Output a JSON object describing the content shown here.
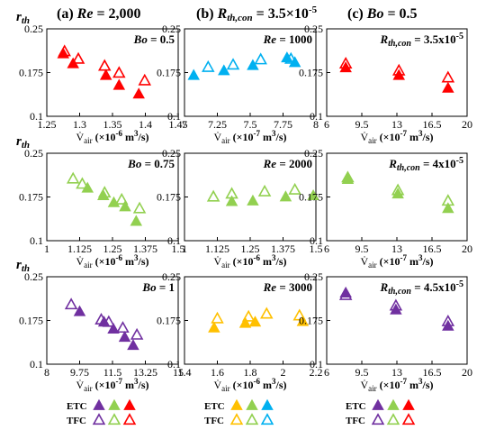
{
  "figure": {
    "col_titles": [
      "(a) Re = 2,000",
      "(b) Rth,con = 3.5×10-5",
      "(c) Bo = 0.5"
    ],
    "col_title_parts": [
      {
        "prefix": "(a) ",
        "italic": "Re",
        "suffix": " = 2,000",
        "sup": ""
      },
      {
        "prefix": "(b) ",
        "italic": "R",
        "sub": "th,con",
        "suffix": " = 3.5×10",
        "sup": "-5"
      },
      {
        "prefix": "(c) ",
        "italic": "Bo",
        "suffix": " = 0.5",
        "sup": ""
      }
    ],
    "row_ylabel": "rth",
    "legend": {
      "rows": [
        "ETC",
        "TFC"
      ],
      "colors": [
        "#7030a0",
        "#92d050",
        "#ff0000",
        "#ffc000",
        "#00b0f0"
      ],
      "panel_columns": [
        [
          "#7030a0",
          "#92d050",
          "#ff0000"
        ],
        [
          "#ffc000",
          "#92d050",
          "#00b0f0"
        ],
        [
          "#7030a0",
          "#92d050",
          "#ff0000"
        ]
      ]
    }
  },
  "chart_data": [
    {
      "type": "scatter",
      "panel": "row1-col1",
      "color": "#ff0000",
      "annotation": "Bo = 0.5",
      "xlabel": "V̇air (×10-6 m3/s)",
      "ylabel": "rth",
      "xlim": [
        1.25,
        1.45
      ],
      "ylim": [
        0.1,
        0.25
      ],
      "xticks": [
        "1.25",
        "1.3",
        "1.35",
        "1.4",
        "1.45"
      ],
      "yticks": [
        "0.1",
        "0.175",
        "0.25"
      ],
      "series": [
        {
          "name": "ETC",
          "points": [
            [
              1.275,
              0.207
            ],
            [
              1.29,
              0.19
            ],
            [
              1.34,
              0.17
            ],
            [
              1.36,
              0.153
            ],
            [
              1.39,
              0.138
            ]
          ]
        },
        {
          "name": "TFC",
          "points": [
            [
              1.277,
              0.211
            ],
            [
              1.298,
              0.198
            ],
            [
              1.338,
              0.186
            ],
            [
              1.36,
              0.174
            ],
            [
              1.399,
              0.161
            ]
          ]
        }
      ]
    },
    {
      "type": "scatter",
      "panel": "row1-col2",
      "color": "#00b0f0",
      "annotation": "Re = 1000",
      "xlabel": "V̇air (×10-7 m3/s)",
      "ylabel": "",
      "xlim": [
        7,
        8
      ],
      "ylim": [
        0.1,
        0.25
      ],
      "xticks": [
        "7",
        "7.25",
        "7.5",
        "7.75",
        "8"
      ],
      "yticks": [
        "0.1",
        "0.175",
        "0.25"
      ],
      "series": [
        {
          "name": "ETC",
          "points": [
            [
              7.07,
              0.17
            ],
            [
              7.3,
              0.178
            ],
            [
              7.52,
              0.187
            ],
            [
              7.78,
              0.2
            ],
            [
              7.84,
              0.192
            ]
          ]
        },
        {
          "name": "TFC",
          "points": [
            [
              7.18,
              0.184
            ],
            [
              7.37,
              0.188
            ],
            [
              7.58,
              0.197
            ],
            [
              7.81,
              0.198
            ]
          ]
        }
      ]
    },
    {
      "type": "scatter",
      "panel": "row1-col3",
      "color": "#ff0000",
      "annotation": "Rth,con = 3.5x10-5",
      "xlabel": "V̇air (×10-7 m3/s)",
      "ylabel": "",
      "xlim": [
        6,
        20
      ],
      "ylim": [
        0.1,
        0.25
      ],
      "xticks": [
        "6",
        "9.5",
        "13",
        "16.5",
        "20"
      ],
      "yticks": [
        "0.1",
        "0.175",
        "0.25"
      ],
      "series": [
        {
          "name": "ETC",
          "points": [
            [
              7.9,
              0.183
            ],
            [
              13.2,
              0.17
            ],
            [
              18.1,
              0.148
            ]
          ]
        },
        {
          "name": "TFC",
          "points": [
            [
              7.9,
              0.19
            ],
            [
              13.2,
              0.178
            ],
            [
              18.1,
              0.166
            ]
          ]
        }
      ]
    },
    {
      "type": "scatter",
      "panel": "row2-col1",
      "color": "#92d050",
      "annotation": "Bo = 0.75",
      "xlabel": "V̇air (×10-6 m3/s)",
      "ylabel": "rth",
      "xlim": [
        1,
        1.5
      ],
      "ylim": [
        0.1,
        0.25
      ],
      "xticks": [
        "1",
        "1.125",
        "1.25",
        "1.375",
        "1.5"
      ],
      "yticks": [
        "0.1",
        "0.175",
        "0.25"
      ],
      "series": [
        {
          "name": "ETC",
          "points": [
            [
              1.155,
              0.19
            ],
            [
              1.215,
              0.177
            ],
            [
              1.255,
              0.165
            ],
            [
              1.298,
              0.158
            ],
            [
              1.34,
              0.133
            ]
          ]
        },
        {
          "name": "TFC",
          "points": [
            [
              1.1,
              0.206
            ],
            [
              1.135,
              0.197
            ],
            [
              1.22,
              0.182
            ],
            [
              1.285,
              0.17
            ],
            [
              1.353,
              0.155
            ]
          ]
        }
      ]
    },
    {
      "type": "scatter",
      "panel": "row2-col2",
      "color": "#92d050",
      "annotation": "Re = 2000",
      "xlabel": "V̇air (×10-6 m3/s)",
      "ylabel": "",
      "xlim": [
        1,
        1.5
      ],
      "ylim": [
        0.1,
        0.25
      ],
      "xticks": [
        "1",
        "1.125",
        "1.25",
        "1.375",
        "1.5"
      ],
      "yticks": [
        "0.1",
        "0.175",
        "0.25"
      ],
      "series": [
        {
          "name": "ETC",
          "points": [
            [
              1.18,
              0.167
            ],
            [
              1.26,
              0.168
            ],
            [
              1.385,
              0.175
            ],
            [
              1.49,
              0.177
            ]
          ]
        },
        {
          "name": "TFC",
          "points": [
            [
              1.11,
              0.175
            ],
            [
              1.18,
              0.18
            ],
            [
              1.305,
              0.184
            ],
            [
              1.42,
              0.187
            ]
          ]
        }
      ]
    },
    {
      "type": "scatter",
      "panel": "row2-col3",
      "color": "#92d050",
      "annotation": "Rth,con = 4x10-5",
      "xlabel": "V̇air (×10-7 m3/s)",
      "ylabel": "",
      "xlim": [
        6,
        20
      ],
      "ylim": [
        0.1,
        0.25
      ],
      "xticks": [
        "6",
        "9.5",
        "13",
        "16.5",
        "20"
      ],
      "yticks": [
        "0.1",
        "0.175",
        "0.25"
      ],
      "series": [
        {
          "name": "ETC",
          "points": [
            [
              8.1,
              0.205
            ],
            [
              13.1,
              0.18
            ],
            [
              18.1,
              0.155
            ]
          ]
        },
        {
          "name": "TFC",
          "points": [
            [
              8.1,
              0.208
            ],
            [
              13.1,
              0.186
            ],
            [
              18.1,
              0.168
            ]
          ]
        }
      ]
    },
    {
      "type": "scatter",
      "panel": "row3-col1",
      "color": "#7030a0",
      "annotation": "Bo = 1",
      "xlabel": "V̇air (×10-7 m3/s)",
      "ylabel": "rth",
      "xlim": [
        8,
        15
      ],
      "ylim": [
        0.1,
        0.25
      ],
      "xticks": [
        "8",
        "9.75",
        "11.5",
        "13.25",
        "15"
      ],
      "yticks": [
        "0.1",
        "0.175",
        "0.25"
      ],
      "series": [
        {
          "name": "ETC",
          "points": [
            [
              9.75,
              0.19
            ],
            [
              11.05,
              0.172
            ],
            [
              11.55,
              0.16
            ],
            [
              12.15,
              0.146
            ],
            [
              12.6,
              0.132
            ]
          ]
        },
        {
          "name": "TFC",
          "points": [
            [
              9.3,
              0.202
            ],
            [
              10.9,
              0.176
            ],
            [
              11.3,
              0.172
            ],
            [
              12.05,
              0.162
            ],
            [
              12.8,
              0.15
            ]
          ]
        }
      ]
    },
    {
      "type": "scatter",
      "panel": "row3-col2",
      "color": "#ffc000",
      "annotation": "Re = 3000",
      "xlabel": "V̇air (×10-6 m3/s)",
      "ylabel": "",
      "xlim": [
        1.4,
        2.2
      ],
      "ylim": [
        0.1,
        0.25
      ],
      "xticks": [
        "1.4",
        "1.6",
        "1.8",
        "2",
        "2.2"
      ],
      "yticks": [
        "0.1",
        "0.175",
        "0.25"
      ],
      "series": [
        {
          "name": "ETC",
          "points": [
            [
              1.58,
              0.162
            ],
            [
              1.77,
              0.17
            ],
            [
              1.83,
              0.172
            ],
            [
              2.12,
              0.173
            ]
          ]
        },
        {
          "name": "TFC",
          "points": [
            [
              1.6,
              0.178
            ],
            [
              1.79,
              0.181
            ],
            [
              1.9,
              0.186
            ],
            [
              2.1,
              0.183
            ]
          ]
        }
      ]
    },
    {
      "type": "scatter",
      "panel": "row3-col3",
      "color": "#7030a0",
      "annotation": "Rth,con = 4.5x10-5",
      "xlabel": "V̇air (×10-7 m3/s)",
      "ylabel": "",
      "xlim": [
        6,
        20
      ],
      "ylim": [
        0.1,
        0.25
      ],
      "xticks": [
        "6",
        "9.5",
        "13",
        "16.5",
        "20"
      ],
      "yticks": [
        "0.1",
        "0.175",
        "0.25"
      ],
      "series": [
        {
          "name": "ETC",
          "points": [
            [
              7.9,
              0.222
            ],
            [
              12.9,
              0.193
            ],
            [
              18.1,
              0.165
            ]
          ]
        },
        {
          "name": "TFC",
          "points": [
            [
              7.9,
              0.218
            ],
            [
              12.9,
              0.2
            ],
            [
              18.1,
              0.173
            ]
          ]
        }
      ]
    }
  ]
}
